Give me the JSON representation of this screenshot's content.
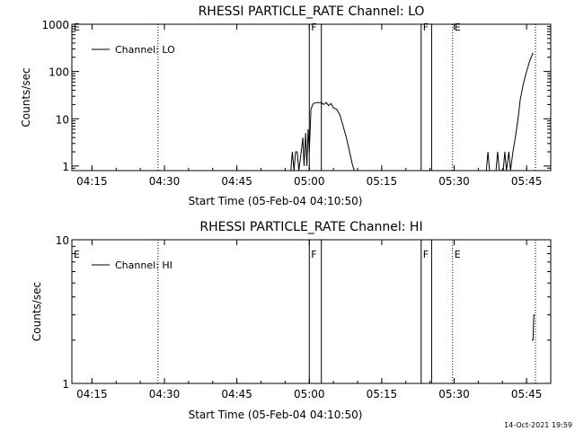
{
  "footer": {
    "timestamp": "14-Oct-2021 19:59"
  },
  "chart_data": [
    {
      "type": "line",
      "title": "RHESSI PARTICLE_RATE Channel: LO",
      "xlabel": "Start Time (05-Feb-04 04:10:50)",
      "ylabel": "Counts/sec",
      "yscale": "log",
      "xlim": [
        "04:10:50",
        "05:50:00"
      ],
      "ylim": [
        0.8,
        1000
      ],
      "x_ticks": [
        "04:15",
        "04:30",
        "04:45",
        "05:00",
        "05:15",
        "05:30",
        "05:45"
      ],
      "y_ticks": [
        "1",
        "10",
        "100",
        "1000"
      ],
      "legend": {
        "position": "top-left",
        "entries": [
          "Channel: LO"
        ]
      },
      "series": [
        {
          "name": "Channel: LO",
          "segments": [
            [
              [
                "04:56:10",
                0.8
              ],
              [
                "04:56:30",
                2
              ],
              [
                "04:56:50",
                0.8
              ],
              [
                "04:57:10",
                2
              ],
              [
                "04:57:30",
                2
              ],
              [
                "04:57:50",
                0.8
              ],
              [
                "04:58:20",
                2
              ],
              [
                "04:58:40",
                4
              ],
              [
                "04:58:55",
                1
              ],
              [
                "04:59:15",
                5
              ],
              [
                "04:59:30",
                1
              ],
              [
                "04:59:45",
                6
              ],
              [
                "05:00:00",
                2
              ],
              [
                "05:00:20",
                16
              ],
              [
                "05:00:50",
                21
              ],
              [
                "05:01:30",
                22
              ],
              [
                "05:02:30",
                22
              ],
              [
                "05:03:00",
                20
              ],
              [
                "05:03:30",
                22
              ],
              [
                "05:04:00",
                19
              ],
              [
                "05:04:30",
                21
              ],
              [
                "05:05:00",
                17
              ],
              [
                "05:05:40",
                16
              ],
              [
                "05:06:20",
                12
              ],
              [
                "05:07:00",
                7
              ],
              [
                "05:07:40",
                4
              ],
              [
                "05:08:20",
                2
              ],
              [
                "05:09:00",
                1
              ],
              [
                "05:09:20",
                0.8
              ]
            ],
            [
              [
                "05:36:40",
                0.8
              ],
              [
                "05:37:00",
                2
              ],
              [
                "05:37:20",
                0.8
              ],
              [
                "05:38:40",
                0.8
              ],
              [
                "05:39:00",
                2
              ],
              [
                "05:39:20",
                0.8
              ],
              [
                "05:40:10",
                0.8
              ],
              [
                "05:40:30",
                2
              ],
              [
                "05:40:50",
                0.8
              ],
              [
                "05:41:20",
                2
              ],
              [
                "05:41:40",
                0.8
              ],
              [
                "05:42:10",
                2
              ],
              [
                "05:42:40",
                4
              ],
              [
                "05:43:10",
                9
              ],
              [
                "05:43:40",
                25
              ],
              [
                "05:44:20",
                55
              ],
              [
                "05:45:00",
                100
              ],
              [
                "05:45:40",
                170
              ],
              [
                "05:46:20",
                250
              ]
            ]
          ]
        }
      ],
      "flags": [
        {
          "label": "F",
          "time": "05:00:00",
          "level": "top"
        },
        {
          "label": "F",
          "time": "05:23:10",
          "level": "top"
        },
        {
          "label": "E",
          "time": "05:29:40",
          "level": "top"
        },
        {
          "label": "E",
          "time": "04:10:50",
          "level": "top"
        }
      ],
      "shaded_intervals": [
        [
          "05:00:00",
          "05:02:30"
        ],
        [
          "05:23:10",
          "05:25:20"
        ]
      ],
      "dotted_lines": [
        "04:28:40",
        "05:29:40",
        "05:46:50"
      ]
    },
    {
      "type": "line",
      "title": "RHESSI PARTICLE_RATE Channel: HI",
      "xlabel": "Start Time (05-Feb-04 04:10:50)",
      "ylabel": "Counts/sec",
      "yscale": "log",
      "xlim": [
        "04:10:50",
        "05:50:00"
      ],
      "ylim": [
        1,
        10
      ],
      "x_ticks": [
        "04:15",
        "04:30",
        "04:45",
        "05:00",
        "05:15",
        "05:30",
        "05:45"
      ],
      "y_ticks": [
        "1",
        "10"
      ],
      "legend": {
        "position": "top-left",
        "entries": [
          "Channel: HI"
        ]
      },
      "series": [
        {
          "name": "Channel: HI",
          "segments": [
            [
              [
                "05:46:05",
                2
              ],
              [
                "05:46:20",
                2
              ],
              [
                "05:46:30",
                3
              ],
              [
                "05:46:40",
                3
              ]
            ]
          ]
        }
      ],
      "flags": [
        {
          "label": "E",
          "time": "04:10:50",
          "level": "low"
        },
        {
          "label": "F",
          "time": "05:00:00",
          "level": "low"
        },
        {
          "label": "F",
          "time": "05:23:10",
          "level": "low"
        },
        {
          "label": "E",
          "time": "05:29:40",
          "level": "low"
        }
      ],
      "shaded_intervals": [
        [
          "05:00:00",
          "05:02:30"
        ],
        [
          "05:23:10",
          "05:25:20"
        ]
      ],
      "dotted_lines": [
        "04:28:40",
        "05:29:40",
        "05:46:50"
      ]
    }
  ]
}
